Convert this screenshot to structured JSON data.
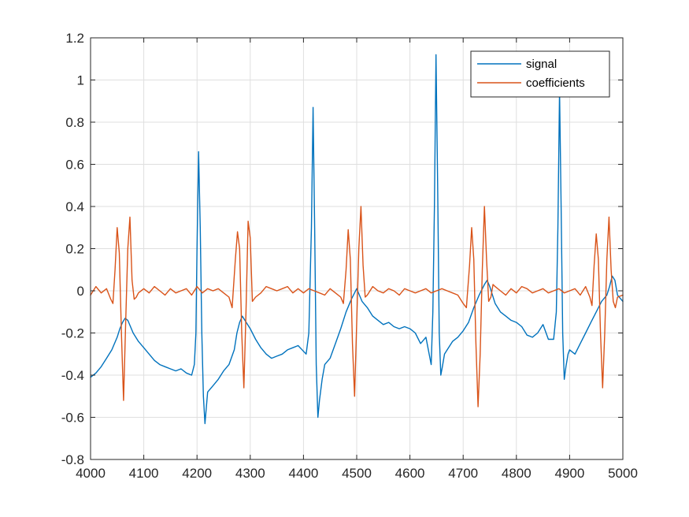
{
  "chart_data": {
    "type": "line",
    "xlim": [
      4000,
      5000
    ],
    "ylim": [
      -0.8,
      1.2
    ],
    "x_ticks": [
      4000,
      4100,
      4200,
      4300,
      4400,
      4500,
      4600,
      4700,
      4800,
      4900,
      5000
    ],
    "y_ticks": [
      -0.8,
      -0.6,
      -0.4,
      -0.2,
      0,
      0.2,
      0.4,
      0.6,
      0.8,
      1,
      1.2
    ],
    "x_tick_labels": [
      "4000",
      "4100",
      "4200",
      "4300",
      "4400",
      "4500",
      "4600",
      "4700",
      "4800",
      "4900",
      "5000"
    ],
    "y_tick_labels": [
      "-0.8",
      "-0.6",
      "-0.4",
      "-0.2",
      "0",
      "0.2",
      "0.4",
      "0.6",
      "0.8",
      "1",
      "1.2"
    ],
    "grid": true,
    "legend_position": "top-right",
    "series": [
      {
        "name": "signal",
        "color": "#0072BD",
        "x": [
          4000,
          4010,
          4020,
          4030,
          4040,
          4050,
          4055,
          4060,
          4065,
          4070,
          4080,
          4090,
          4100,
          4110,
          4120,
          4130,
          4140,
          4150,
          4160,
          4170,
          4180,
          4190,
          4195,
          4198,
          4200,
          4203,
          4206,
          4209,
          4212,
          4215,
          4220,
          4230,
          4240,
          4250,
          4260,
          4270,
          4275,
          4280,
          4285,
          4290,
          4300,
          4310,
          4320,
          4330,
          4340,
          4350,
          4360,
          4370,
          4380,
          4390,
          4405,
          4410,
          4415,
          4418,
          4421,
          4424,
          4427,
          4430,
          4435,
          4440,
          4450,
          4460,
          4470,
          4480,
          4490,
          4500,
          4505,
          4510,
          4520,
          4530,
          4540,
          4550,
          4560,
          4570,
          4580,
          4590,
          4600,
          4610,
          4620,
          4630,
          4640,
          4643,
          4646,
          4649,
          4652,
          4655,
          4658,
          4661,
          4665,
          4670,
          4680,
          4690,
          4700,
          4710,
          4720,
          4730,
          4740,
          4745,
          4750,
          4760,
          4770,
          4780,
          4790,
          4800,
          4810,
          4820,
          4830,
          4840,
          4850,
          4860,
          4870,
          4875,
          4878,
          4881,
          4884,
          4887,
          4890,
          4893,
          4897,
          4900,
          4910,
          4920,
          4930,
          4940,
          4950,
          4960,
          4970,
          4975,
          4980,
          4985,
          4990,
          5000
        ],
        "values": [
          -0.41,
          -0.39,
          -0.36,
          -0.32,
          -0.28,
          -0.22,
          -0.18,
          -0.15,
          -0.13,
          -0.14,
          -0.2,
          -0.24,
          -0.27,
          -0.3,
          -0.33,
          -0.35,
          -0.36,
          -0.37,
          -0.38,
          -0.37,
          -0.39,
          -0.4,
          -0.35,
          -0.2,
          0.2,
          0.66,
          0.3,
          -0.2,
          -0.5,
          -0.63,
          -0.48,
          -0.45,
          -0.42,
          -0.38,
          -0.35,
          -0.28,
          -0.2,
          -0.15,
          -0.12,
          -0.14,
          -0.18,
          -0.23,
          -0.27,
          -0.3,
          -0.32,
          -0.31,
          -0.3,
          -0.28,
          -0.27,
          -0.26,
          -0.3,
          -0.2,
          0.3,
          0.87,
          0.3,
          -0.35,
          -0.6,
          -0.52,
          -0.42,
          -0.35,
          -0.32,
          -0.25,
          -0.18,
          -0.1,
          -0.04,
          0.01,
          -0.02,
          -0.05,
          -0.08,
          -0.12,
          -0.14,
          -0.16,
          -0.15,
          -0.17,
          -0.18,
          -0.17,
          -0.18,
          -0.2,
          -0.25,
          -0.22,
          -0.35,
          -0.1,
          0.4,
          1.12,
          0.5,
          -0.2,
          -0.4,
          -0.36,
          -0.3,
          -0.28,
          -0.24,
          -0.22,
          -0.19,
          -0.15,
          -0.08,
          -0.02,
          0.03,
          0.05,
          0.02,
          -0.06,
          -0.1,
          -0.12,
          -0.14,
          -0.15,
          -0.17,
          -0.21,
          -0.22,
          -0.2,
          -0.16,
          -0.23,
          -0.23,
          -0.1,
          0.3,
          0.95,
          0.4,
          -0.2,
          -0.42,
          -0.36,
          -0.3,
          -0.28,
          -0.3,
          -0.25,
          -0.2,
          -0.15,
          -0.1,
          -0.05,
          -0.02,
          0.02,
          0.07,
          0.05,
          -0.02,
          -0.05
        ]
      },
      {
        "name": "coefficients",
        "color": "#D95319",
        "x": [
          4000,
          4010,
          4020,
          4030,
          4038,
          4042,
          4046,
          4050,
          4054,
          4058,
          4062,
          4066,
          4070,
          4074,
          4078,
          4082,
          4086,
          4090,
          4100,
          4110,
          4120,
          4130,
          4140,
          4150,
          4160,
          4170,
          4180,
          4190,
          4200,
          4210,
          4220,
          4230,
          4240,
          4250,
          4260,
          4266,
          4272,
          4276,
          4280,
          4284,
          4288,
          4292,
          4296,
          4300,
          4304,
          4310,
          4320,
          4330,
          4340,
          4350,
          4360,
          4370,
          4380,
          4390,
          4400,
          4410,
          4420,
          4430,
          4440,
          4450,
          4460,
          4470,
          4475,
          4480,
          4484,
          4488,
          4492,
          4496,
          4500,
          4504,
          4508,
          4512,
          4516,
          4520,
          4530,
          4540,
          4550,
          4560,
          4570,
          4580,
          4590,
          4600,
          4610,
          4620,
          4630,
          4640,
          4650,
          4660,
          4670,
          4680,
          4690,
          4700,
          4706,
          4712,
          4716,
          4720,
          4724,
          4728,
          4732,
          4736,
          4740,
          4744,
          4748,
          4752,
          4756,
          4760,
          4770,
          4780,
          4790,
          4800,
          4810,
          4820,
          4830,
          4840,
          4850,
          4860,
          4870,
          4880,
          4890,
          4900,
          4910,
          4920,
          4930,
          4938,
          4942,
          4946,
          4950,
          4954,
          4958,
          4962,
          4966,
          4970,
          4974,
          4978,
          4982,
          4986,
          4990,
          5000
        ],
        "values": [
          -0.02,
          0.02,
          -0.01,
          0.01,
          -0.04,
          -0.06,
          0.1,
          0.3,
          0.18,
          -0.2,
          -0.52,
          -0.15,
          0.2,
          0.35,
          0.05,
          -0.04,
          -0.03,
          -0.01,
          0.01,
          -0.01,
          0.02,
          0.0,
          -0.02,
          0.01,
          -0.01,
          0.0,
          0.01,
          -0.02,
          0.02,
          -0.01,
          0.01,
          0.0,
          0.01,
          -0.01,
          -0.03,
          -0.08,
          0.15,
          0.28,
          0.2,
          -0.2,
          -0.46,
          -0.1,
          0.33,
          0.25,
          -0.05,
          -0.03,
          -0.01,
          0.02,
          0.01,
          0.0,
          0.01,
          0.02,
          -0.01,
          0.01,
          -0.01,
          0.01,
          0.0,
          -0.01,
          -0.02,
          0.01,
          -0.01,
          -0.03,
          -0.06,
          0.1,
          0.29,
          0.15,
          -0.25,
          -0.5,
          -0.15,
          0.2,
          0.4,
          0.12,
          -0.03,
          -0.02,
          0.02,
          0.0,
          -0.01,
          0.01,
          0.0,
          -0.02,
          0.01,
          0.0,
          -0.01,
          0.0,
          0.01,
          -0.01,
          0.0,
          0.01,
          0.0,
          -0.01,
          -0.02,
          -0.06,
          -0.08,
          0.12,
          0.3,
          0.15,
          -0.25,
          -0.55,
          -0.3,
          0.1,
          0.4,
          0.15,
          -0.05,
          -0.03,
          0.03,
          0.02,
          0.0,
          -0.02,
          0.01,
          -0.01,
          0.02,
          0.01,
          -0.01,
          0.0,
          0.01,
          -0.01,
          0.0,
          0.01,
          -0.01,
          0.0,
          0.01,
          -0.02,
          0.02,
          -0.03,
          -0.07,
          0.12,
          0.27,
          0.15,
          -0.2,
          -0.46,
          -0.2,
          0.15,
          0.35,
          0.1,
          -0.05,
          -0.08,
          -0.03,
          -0.02
        ]
      }
    ]
  }
}
